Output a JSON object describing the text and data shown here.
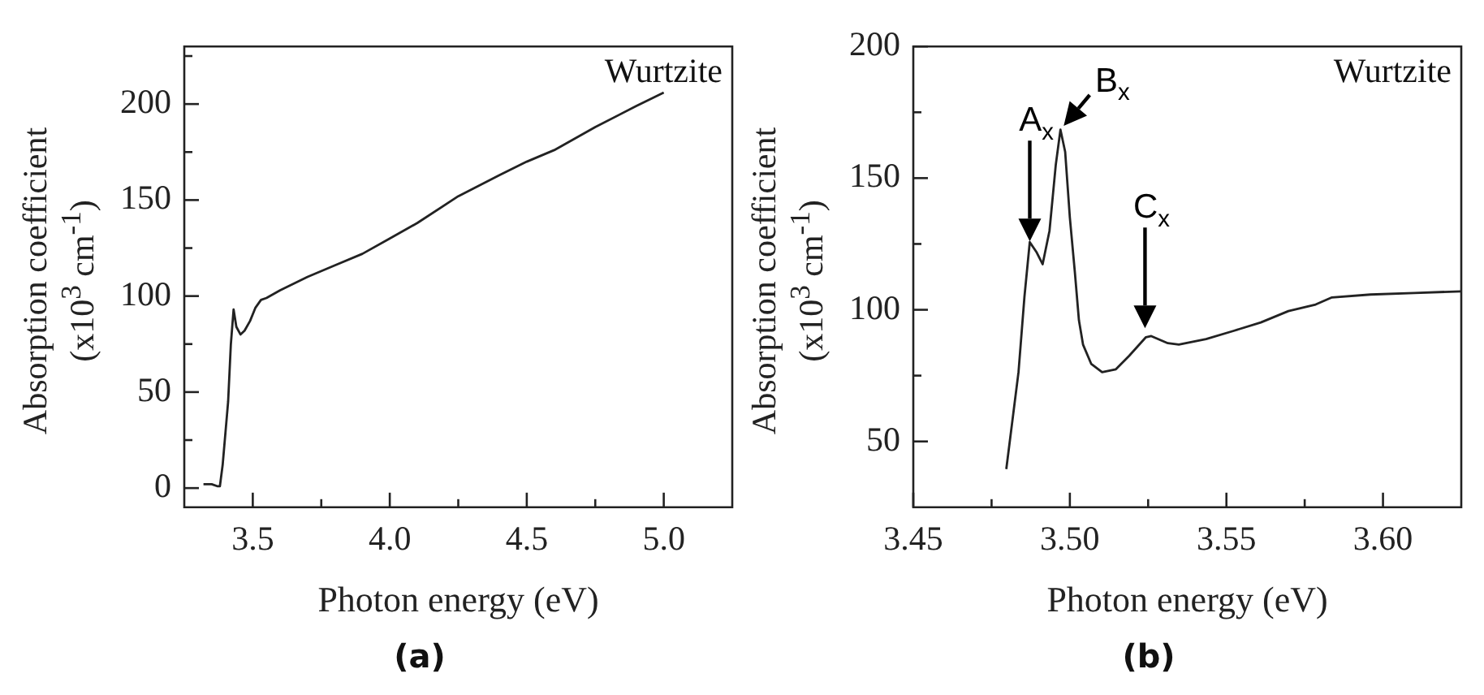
{
  "chart_data": [
    {
      "type": "line",
      "title": "(a)",
      "xlabel": "Photon energy (eV)",
      "ylabel": "Absorption coefficient (x10$^{3}$ cm$^{-1}$)",
      "marker": "none",
      "legend": false,
      "xlim": [
        3.25,
        5.25
      ],
      "xticks": [
        {
          "value": 3.5,
          "label": "3.5"
        },
        {
          "value": 3.75,
          "label": null
        },
        {
          "value": 4,
          "label": "4.0"
        },
        {
          "value": 4.25,
          "label": null
        },
        {
          "value": 4.5,
          "label": "4.5"
        },
        {
          "value": 4.75,
          "label": null
        },
        {
          "value": 5,
          "label": "5.0"
        }
      ],
      "ylim": [
        -10,
        230
      ],
      "yticks": [
        0,
        {
          "value": 25,
          "label": null
        },
        50,
        {
          "value": 75,
          "label": null
        },
        100,
        {
          "value": 125,
          "label": null
        },
        150,
        {
          "value": 175,
          "label": null
        },
        200,
        {
          "value": 225,
          "label": null
        }
      ],
      "annotations": [
        "Wurtzite"
      ],
      "series": [
        {
          "color": "#222222",
          "x": [
            3.32,
            3.35,
            3.37,
            3.38,
            3.39,
            3.41,
            3.42,
            3.43,
            3.44,
            3.455,
            3.47,
            3.49,
            3.51,
            3.53,
            3.55,
            3.6,
            3.7,
            3.8,
            3.9,
            4.0,
            4.1,
            4.25,
            4.4,
            4.5,
            4.6,
            4.75,
            4.9,
            5.0
          ],
          "values": [
            2,
            2,
            1,
            1,
            12,
            45,
            75,
            93,
            84,
            80,
            82,
            87,
            94,
            98,
            99,
            103,
            110,
            116,
            122,
            130,
            138,
            152,
            163,
            170,
            176,
            188,
            199,
            206
          ]
        }
      ]
    },
    {
      "type": "line",
      "title": "(b)",
      "xlabel": "Photon energy (eV)",
      "ylabel": "Absorption coefficient (x10$^{3}$ cm$^{-1}$)",
      "marker": "none",
      "legend": false,
      "xlim": [
        3.45,
        3.625
      ],
      "xticks": [
        {
          "value": 3.45,
          "label": "3.45"
        },
        {
          "value": 3.475,
          "label": null
        },
        {
          "value": 3.5,
          "label": "3.50"
        },
        {
          "value": 3.525,
          "label": null
        },
        {
          "value": 3.55,
          "label": "3.55"
        },
        {
          "value": 3.575,
          "label": null
        },
        {
          "value": 3.6,
          "label": "3.60"
        }
      ],
      "ylim": [
        25,
        200
      ],
      "yticks": [
        50,
        {
          "value": 75,
          "label": null
        },
        100,
        {
          "value": 125,
          "label": null
        },
        150,
        {
          "value": 175,
          "label": null
        },
        200
      ],
      "annotations": [
        "Wurtzite",
        {
          "text": "A$_{x}$",
          "x": 3.4872,
          "y": 126
        },
        {
          "text": "B$_{x}$",
          "x": 3.497,
          "y": 168
        },
        {
          "text": "C$_{x}$",
          "x": 3.524,
          "y": 93
        }
      ],
      "series": [
        {
          "color": "#222222",
          "x": [
            3.4797,
            3.4836,
            3.4855,
            3.4872,
            3.4893,
            3.4913,
            3.4935,
            3.4955,
            3.497,
            3.4985,
            3.5,
            3.5016,
            3.5029,
            3.5042,
            3.5068,
            3.5103,
            3.5147,
            3.519,
            3.5243,
            3.526,
            3.5313,
            3.5348,
            3.5435,
            3.5523,
            3.561,
            3.5698,
            3.5785,
            3.5837,
            3.596,
            3.61,
            3.625
          ],
          "values": [
            39.5,
            76.3,
            105,
            125.7,
            122,
            117.3,
            130,
            155,
            168.4,
            160,
            135,
            114.2,
            96,
            86.8,
            79.5,
            76.3,
            77.4,
            82.6,
            89.6,
            90,
            87.3,
            86.8,
            88.9,
            92,
            95.2,
            99.5,
            102,
            104.7,
            105.8,
            106.4,
            107
          ]
        }
      ]
    }
  ]
}
